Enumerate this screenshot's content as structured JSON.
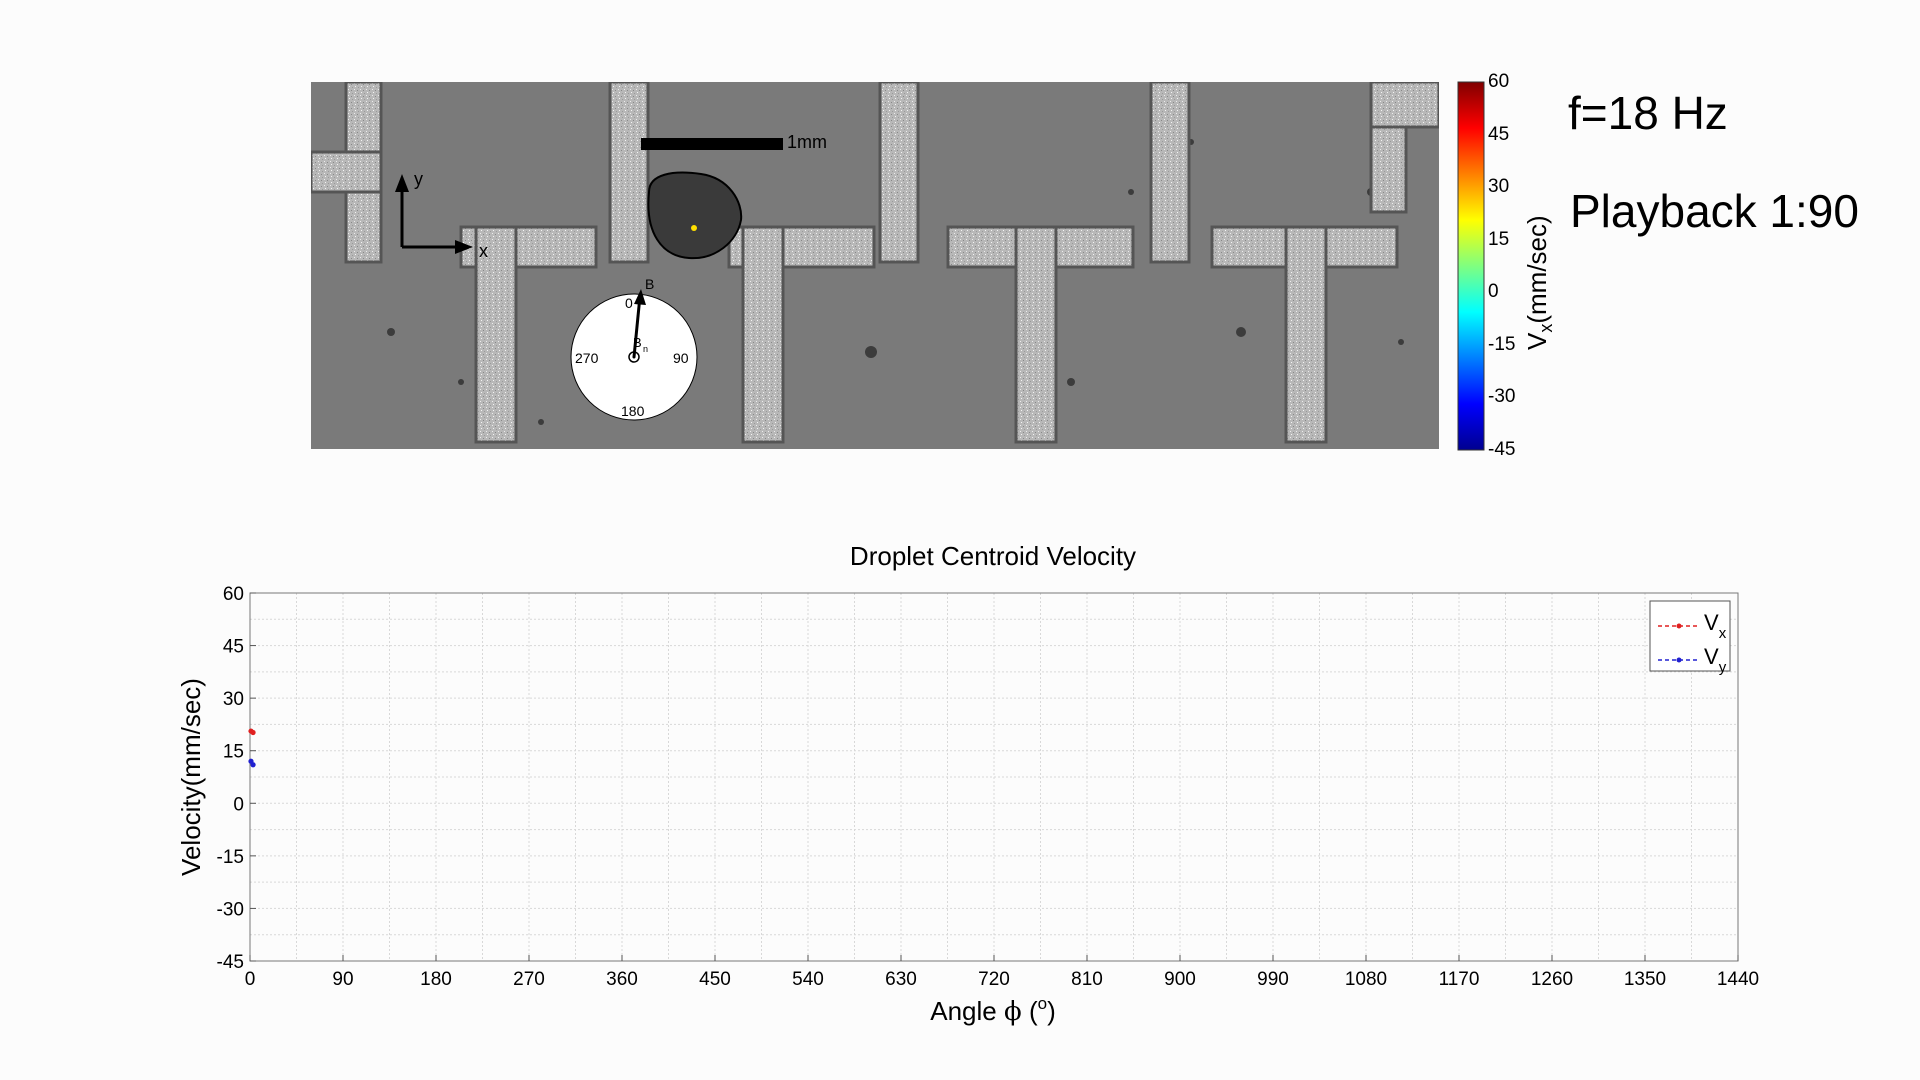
{
  "header": {
    "frequency": "f=18 Hz",
    "playback": "Playback 1:90"
  },
  "micrograph": {
    "scale_bar_label": "1mm",
    "axis_x_label": "x",
    "axis_y_label": "y",
    "compass": {
      "top": "0",
      "right": "90",
      "bottom": "180",
      "left": "270",
      "field_label": "B",
      "normal_label": "B",
      "normal_sub": "n"
    },
    "colors": {
      "droplet": "#3a3a3a",
      "centroid": "#ffe000"
    }
  },
  "colorbar": {
    "title_main": "V",
    "title_sub": "x",
    "title_unit": "(mm/sec)",
    "ticks": [
      "60",
      "45",
      "30",
      "15",
      "0",
      "-15",
      "-30",
      "-45"
    ],
    "range": [
      -45,
      60
    ]
  },
  "chart_data": {
    "type": "scatter",
    "title": "Droplet Centroid Velocity",
    "xlabel_main": "Angle ",
    "xlabel_symbol": "ϕ",
    "xlabel_unit_open": " (",
    "xlabel_unit_sup": "o",
    "xlabel_unit_close": ")",
    "ylabel": "Velocity(mm/sec)",
    "xlim": [
      0,
      1440
    ],
    "ylim": [
      -45,
      60
    ],
    "xticks": [
      0,
      90,
      180,
      270,
      360,
      450,
      540,
      630,
      720,
      810,
      900,
      990,
      1080,
      1170,
      1260,
      1350,
      1440
    ],
    "yticks": [
      60,
      45,
      30,
      15,
      0,
      -15,
      -30,
      -45
    ],
    "grid": true,
    "legend_position": "top-right",
    "series": [
      {
        "name": "V",
        "sub": "x",
        "color": "#e02020",
        "x": [
          0,
          2
        ],
        "y": [
          20.6,
          20.2
        ]
      },
      {
        "name": "V",
        "sub": "y",
        "color": "#2020d0",
        "x": [
          0,
          2
        ],
        "y": [
          12,
          11
        ]
      }
    ]
  }
}
